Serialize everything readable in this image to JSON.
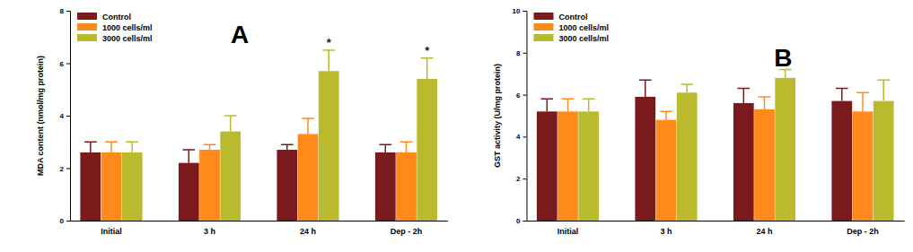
{
  "chart_data": [
    {
      "type": "bar",
      "title": "A",
      "y_label": "MDA content (nmol/mg protein)",
      "categories": [
        "Initial",
        "3 h",
        "24 h",
        "Dep - 2h"
      ],
      "series": [
        {
          "name": "Control",
          "color": "#7b1a1c",
          "values": [
            2.6,
            2.2,
            2.7,
            2.6
          ],
          "errors": [
            0.4,
            0.5,
            0.2,
            0.3
          ]
        },
        {
          "name": "1000 cells/ml",
          "color": "#ff8a1c",
          "values": [
            2.6,
            2.7,
            3.3,
            2.6
          ],
          "errors": [
            0.4,
            0.2,
            0.6,
            0.4
          ]
        },
        {
          "name": "3000 cells/ml",
          "color": "#b9ba2e",
          "values": [
            2.6,
            3.4,
            5.7,
            5.4
          ],
          "errors": [
            0.4,
            0.6,
            0.8,
            0.8
          ],
          "significance": [
            null,
            null,
            "*",
            "*"
          ]
        }
      ],
      "ylim": [
        0,
        8
      ],
      "yticks": [
        0,
        2,
        4,
        6,
        8
      ],
      "grid": false,
      "legend": "top-left"
    },
    {
      "type": "bar",
      "title": "B",
      "y_label": "GST activity (U/mg protein)",
      "categories": [
        "Initial",
        "3 h",
        "24 h",
        "Dep - 2h"
      ],
      "series": [
        {
          "name": "Control",
          "color": "#7b1a1c",
          "values": [
            5.2,
            5.9,
            5.6,
            5.7
          ],
          "errors": [
            0.6,
            0.8,
            0.7,
            0.6
          ]
        },
        {
          "name": "1000 cells/ml",
          "color": "#ff8a1c",
          "values": [
            5.2,
            4.8,
            5.3,
            5.2
          ],
          "errors": [
            0.6,
            0.4,
            0.6,
            0.9
          ]
        },
        {
          "name": "3000 cells/ml",
          "color": "#b9ba2e",
          "values": [
            5.2,
            6.1,
            6.8,
            5.7
          ],
          "errors": [
            0.6,
            0.4,
            0.4,
            1.0
          ]
        }
      ],
      "ylim": [
        0,
        10
      ],
      "yticks": [
        0,
        2,
        4,
        6,
        8,
        10
      ],
      "grid": false,
      "legend": "top-left"
    }
  ]
}
